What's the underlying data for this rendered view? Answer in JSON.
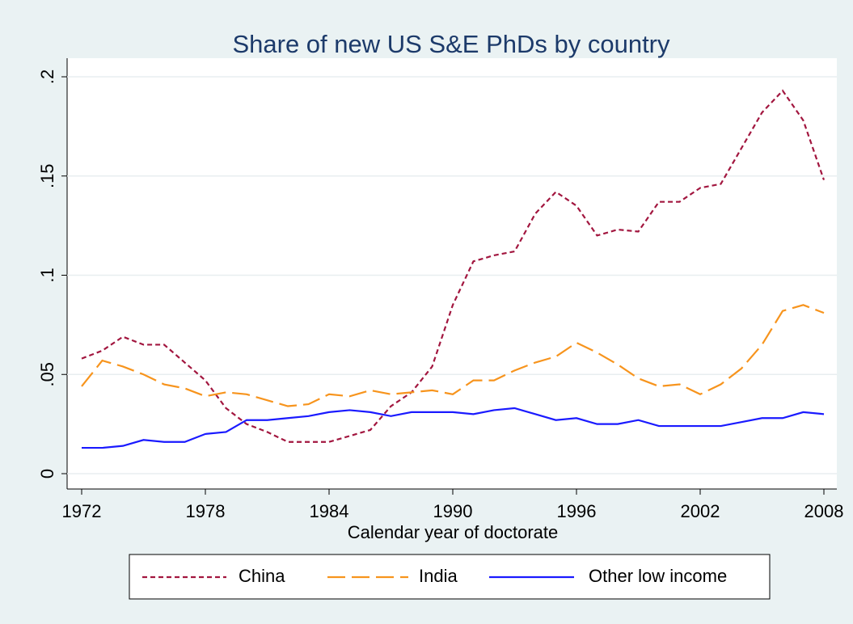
{
  "chart_data": {
    "type": "line",
    "title": "Share of new US S&E PhDs by country",
    "x_label": "Calendar year of doctorate",
    "x": [
      1972,
      1973,
      1974,
      1975,
      1976,
      1977,
      1978,
      1979,
      1980,
      1981,
      1982,
      1983,
      1984,
      1985,
      1986,
      1987,
      1988,
      1989,
      1990,
      1991,
      1992,
      1993,
      1994,
      1995,
      1996,
      1997,
      1998,
      1999,
      2000,
      2001,
      2002,
      2003,
      2004,
      2005,
      2006,
      2007,
      2008
    ],
    "series": [
      {
        "name": "China",
        "color": "#a2163f",
        "style": "short-dash",
        "values": [
          0.058,
          0.062,
          0.069,
          0.065,
          0.065,
          0.056,
          0.047,
          0.033,
          0.025,
          0.021,
          0.016,
          0.016,
          0.016,
          0.019,
          0.022,
          0.034,
          0.041,
          0.054,
          0.085,
          0.107,
          0.11,
          0.112,
          0.131,
          0.142,
          0.135,
          0.12,
          0.123,
          0.122,
          0.137,
          0.137,
          0.144,
          0.146,
          0.164,
          0.182,
          0.193,
          0.178,
          0.148
        ]
      },
      {
        "name": "India",
        "color": "#f7941d",
        "style": "long-dash",
        "values": [
          0.044,
          0.057,
          0.054,
          0.05,
          0.045,
          0.043,
          0.039,
          0.041,
          0.04,
          0.037,
          0.034,
          0.035,
          0.04,
          0.039,
          0.042,
          0.04,
          0.041,
          0.042,
          0.04,
          0.047,
          0.047,
          0.052,
          0.056,
          0.059,
          0.066,
          0.061,
          0.055,
          0.048,
          0.044,
          0.045,
          0.04,
          0.045,
          0.053,
          0.065,
          0.082,
          0.085,
          0.081
        ]
      },
      {
        "name": "Other low income",
        "color": "#1a1aff",
        "style": "solid",
        "values": [
          0.013,
          0.013,
          0.014,
          0.017,
          0.016,
          0.016,
          0.02,
          0.021,
          0.027,
          0.027,
          0.028,
          0.029,
          0.031,
          0.032,
          0.031,
          0.029,
          0.031,
          0.031,
          0.031,
          0.03,
          0.032,
          0.033,
          0.03,
          0.027,
          0.028,
          0.025,
          0.025,
          0.027,
          0.024,
          0.024,
          0.024,
          0.024,
          0.026,
          0.028,
          0.028,
          0.031,
          0.03
        ]
      }
    ],
    "xlim": [
      1972,
      2008
    ],
    "xticks": [
      1972,
      1978,
      1984,
      1990,
      1996,
      2002,
      2008
    ],
    "ylim": [
      0,
      0.2
    ],
    "yticks": [
      0,
      {
        "value": 0.05,
        "label": ".05"
      },
      {
        "value": 0.1,
        "label": ".1"
      },
      {
        "value": 0.15,
        "label": ".15"
      },
      {
        "value": 0.2,
        "label": ".2"
      }
    ],
    "grid": true,
    "legend": "bottom"
  }
}
